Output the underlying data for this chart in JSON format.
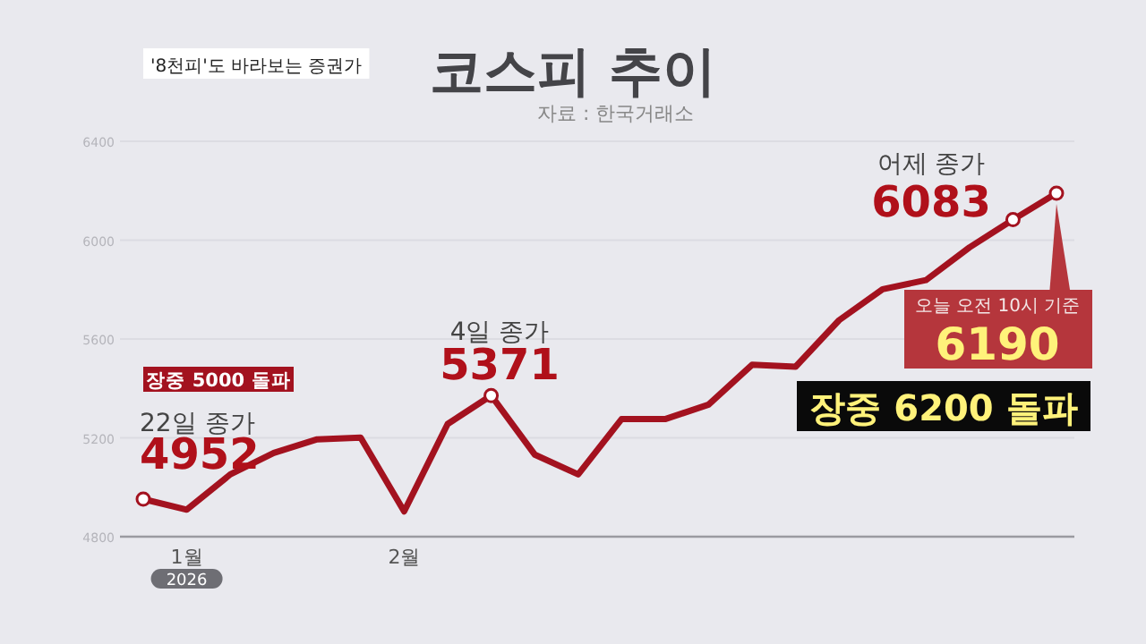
{
  "chart_data": {
    "type": "line",
    "title": "코스피 추이",
    "subtitle": "자료 : 한국거래소",
    "categories": [
      null,
      "1월",
      null,
      null,
      null,
      null,
      "2월",
      null,
      null,
      null,
      null,
      null,
      null,
      null,
      null,
      null,
      null,
      null,
      null,
      null,
      null,
      null
    ],
    "values": [
      4952,
      4909,
      5052,
      5139,
      5194,
      5201,
      4902,
      5256,
      5371,
      5132,
      5052,
      5276,
      5276,
      5334,
      5496,
      5488,
      5676,
      5801,
      5838,
      5971,
      6083,
      6190
    ],
    "value_labels": [
      "4952",
      null,
      null,
      null,
      null,
      null,
      null,
      null,
      "5371",
      null,
      null,
      null,
      null,
      null,
      null,
      null,
      null,
      null,
      null,
      null,
      "6083",
      "6190"
    ],
    "color": "#a3121f",
    "ylim": [
      4800,
      6400
    ],
    "yticks": [
      4800,
      5200,
      5600,
      6000,
      6400
    ],
    "grid": "y",
    "annotations": [
      "22일 종가",
      "4일 종가",
      "어제 종가",
      "오늘 오전 10시 기준",
      "장중 5000 돌파",
      "장중 6200 돌파",
      "2026",
      "'8천피'도 바라보는 증권가"
    ]
  }
}
